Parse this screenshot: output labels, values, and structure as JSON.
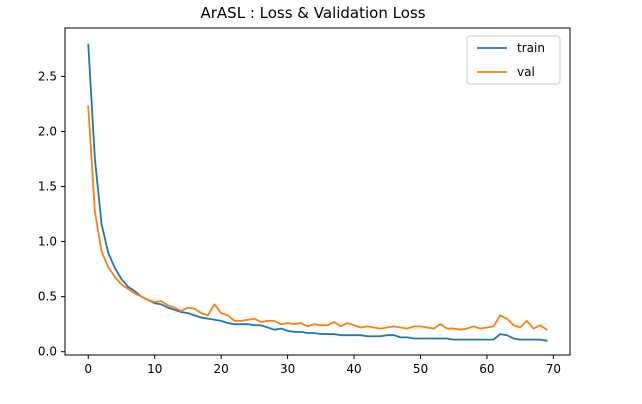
{
  "chart_data": {
    "type": "line",
    "title": "ArASL :  Loss  &  Validation Loss",
    "xlabel": "",
    "ylabel": "",
    "xlim": [
      -3.5,
      72.5
    ],
    "ylim": [
      -0.03,
      2.94
    ],
    "x_ticks": [
      0,
      10,
      20,
      30,
      40,
      50,
      60,
      70
    ],
    "y_ticks": [
      0.0,
      0.5,
      1.0,
      1.5,
      2.0,
      2.5
    ],
    "x_tick_labels": [
      "0",
      "10",
      "20",
      "30",
      "40",
      "50",
      "60",
      "70"
    ],
    "y_tick_labels": [
      "0.0",
      "0.5",
      "1.0",
      "1.5",
      "2.0",
      "2.5"
    ],
    "grid": false,
    "legend_position": "top-right",
    "x": [
      0,
      1,
      2,
      3,
      4,
      5,
      6,
      7,
      8,
      9,
      10,
      11,
      12,
      13,
      14,
      15,
      16,
      17,
      18,
      19,
      20,
      21,
      22,
      23,
      24,
      25,
      26,
      27,
      28,
      29,
      30,
      31,
      32,
      33,
      34,
      35,
      36,
      37,
      38,
      39,
      40,
      41,
      42,
      43,
      44,
      45,
      46,
      47,
      48,
      49,
      50,
      51,
      52,
      53,
      54,
      55,
      56,
      57,
      58,
      59,
      60,
      61,
      62,
      63,
      64,
      65,
      66,
      67,
      68,
      69
    ],
    "series": [
      {
        "name": "train",
        "color": "#1f77b4",
        "values": [
          2.79,
          1.75,
          1.16,
          0.9,
          0.76,
          0.66,
          0.59,
          0.55,
          0.5,
          0.47,
          0.44,
          0.43,
          0.4,
          0.38,
          0.36,
          0.35,
          0.33,
          0.31,
          0.3,
          0.29,
          0.28,
          0.26,
          0.25,
          0.25,
          0.25,
          0.24,
          0.24,
          0.22,
          0.2,
          0.21,
          0.19,
          0.18,
          0.18,
          0.17,
          0.17,
          0.16,
          0.16,
          0.16,
          0.15,
          0.15,
          0.15,
          0.15,
          0.14,
          0.14,
          0.14,
          0.15,
          0.15,
          0.13,
          0.13,
          0.12,
          0.12,
          0.12,
          0.12,
          0.12,
          0.12,
          0.11,
          0.11,
          0.11,
          0.11,
          0.11,
          0.11,
          0.11,
          0.16,
          0.15,
          0.12,
          0.11,
          0.11,
          0.11,
          0.11,
          0.1
        ]
      },
      {
        "name": "val",
        "color": "#ff7f0e",
        "values": [
          2.23,
          1.27,
          0.91,
          0.77,
          0.68,
          0.61,
          0.57,
          0.53,
          0.5,
          0.47,
          0.45,
          0.46,
          0.42,
          0.4,
          0.37,
          0.4,
          0.39,
          0.35,
          0.33,
          0.43,
          0.35,
          0.33,
          0.28,
          0.28,
          0.29,
          0.3,
          0.27,
          0.28,
          0.28,
          0.25,
          0.26,
          0.25,
          0.26,
          0.23,
          0.25,
          0.24,
          0.24,
          0.27,
          0.23,
          0.26,
          0.24,
          0.22,
          0.23,
          0.22,
          0.21,
          0.22,
          0.23,
          0.22,
          0.21,
          0.23,
          0.23,
          0.22,
          0.21,
          0.25,
          0.21,
          0.21,
          0.2,
          0.21,
          0.23,
          0.21,
          0.22,
          0.23,
          0.33,
          0.3,
          0.24,
          0.22,
          0.28,
          0.21,
          0.24,
          0.2
        ]
      }
    ]
  }
}
